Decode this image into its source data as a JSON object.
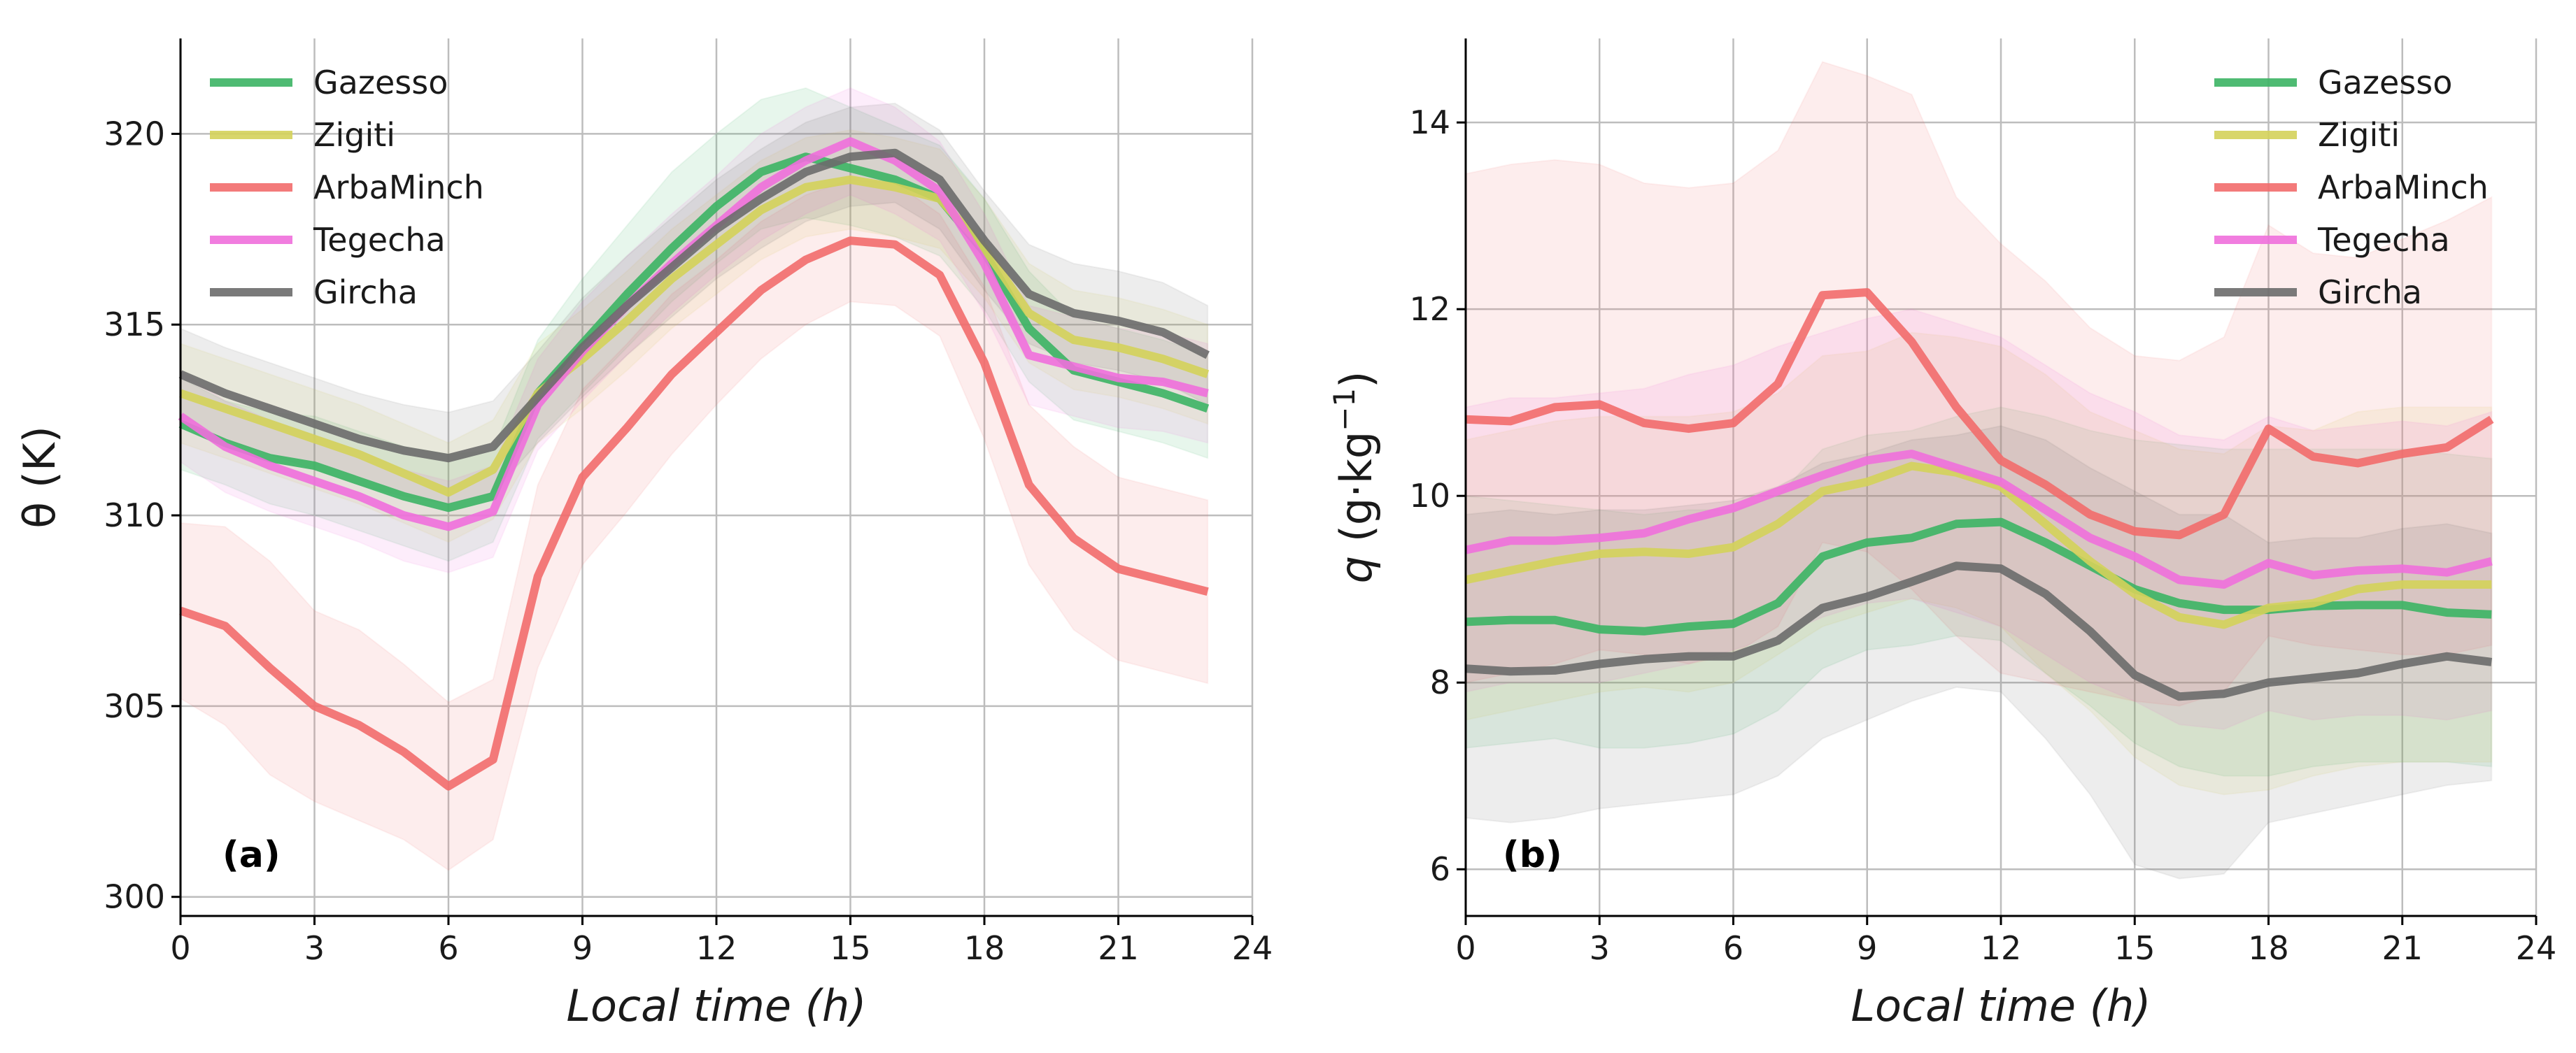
{
  "chart_data": [
    {
      "type": "line",
      "panel_label": "(a)",
      "xlabel": "Local time (h)",
      "ylabel": "θ (K)",
      "xlim": [
        0,
        24
      ],
      "ylim": [
        299.5,
        322.5
      ],
      "xticks": [
        0,
        3,
        6,
        9,
        12,
        15,
        18,
        21,
        24
      ],
      "yticks": [
        300,
        305,
        310,
        315,
        320
      ],
      "grid": "x and y",
      "legend_position": "top-left",
      "x": [
        0,
        1,
        2,
        3,
        4,
        5,
        6,
        7,
        8,
        9,
        10,
        11,
        12,
        13,
        14,
        15,
        16,
        17,
        18,
        19,
        20,
        21,
        22,
        23
      ],
      "series": [
        {
          "name": "Gazesso",
          "color": "#3cb464",
          "values": [
            312.4,
            311.9,
            311.5,
            311.3,
            310.9,
            310.5,
            310.2,
            310.5,
            313.2,
            314.5,
            315.8,
            317.0,
            318.1,
            319.0,
            319.4,
            319.1,
            318.8,
            318.3,
            316.9,
            314.9,
            313.8,
            313.5,
            313.2,
            312.8
          ],
          "lower": [
            311.2,
            310.8,
            310.3,
            310.0,
            309.6,
            309.2,
            308.8,
            309.3,
            312.0,
            313.2,
            314.4,
            315.6,
            316.6,
            317.5,
            317.8,
            317.6,
            317.3,
            316.8,
            315.4,
            313.5,
            312.5,
            312.2,
            311.9,
            311.5
          ],
          "upper": [
            313.6,
            313.0,
            312.7,
            312.6,
            312.2,
            311.8,
            311.6,
            311.7,
            314.6,
            316.2,
            317.6,
            319.0,
            320.0,
            320.9,
            321.2,
            320.7,
            320.2,
            319.7,
            318.3,
            316.4,
            315.2,
            314.9,
            314.6,
            314.2
          ]
        },
        {
          "name": "Zigiti",
          "color": "#d4d25a",
          "values": [
            313.2,
            312.8,
            312.4,
            312.0,
            311.6,
            311.1,
            310.6,
            311.2,
            313.2,
            314.1,
            315.1,
            316.2,
            317.1,
            318.0,
            318.6,
            318.8,
            318.6,
            318.3,
            317.0,
            315.3,
            314.6,
            314.4,
            314.1,
            313.7
          ],
          "lower": [
            311.9,
            311.5,
            311.1,
            310.7,
            310.3,
            309.8,
            309.3,
            309.9,
            311.9,
            312.8,
            313.8,
            314.9,
            315.8,
            316.7,
            317.3,
            317.5,
            317.3,
            317.0,
            315.7,
            314.0,
            313.3,
            313.1,
            312.8,
            312.4
          ],
          "upper": [
            314.5,
            314.1,
            313.7,
            313.3,
            312.9,
            312.4,
            311.9,
            312.5,
            314.5,
            315.4,
            316.4,
            317.5,
            318.4,
            319.3,
            319.9,
            320.1,
            319.9,
            319.6,
            318.3,
            316.6,
            315.9,
            315.7,
            315.4,
            315.0
          ]
        },
        {
          "name": "ArbaMinch",
          "color": "#f26c6c",
          "values": [
            307.5,
            307.1,
            306.0,
            305.0,
            304.5,
            303.8,
            302.9,
            303.6,
            308.4,
            311.0,
            312.3,
            313.7,
            314.8,
            315.9,
            316.7,
            317.2,
            317.1,
            316.3,
            314.0,
            310.8,
            309.4,
            308.6,
            308.3,
            308.0
          ],
          "lower": [
            305.2,
            304.5,
            303.2,
            302.5,
            302.0,
            301.5,
            300.7,
            301.5,
            306.0,
            308.7,
            310.1,
            311.6,
            312.9,
            314.1,
            315.0,
            315.6,
            315.5,
            314.7,
            312.0,
            308.7,
            307.0,
            306.2,
            305.9,
            305.6
          ],
          "upper": [
            309.8,
            309.7,
            308.8,
            307.5,
            307.0,
            306.1,
            305.1,
            305.7,
            310.8,
            313.3,
            314.5,
            315.8,
            316.7,
            317.7,
            318.4,
            318.8,
            318.7,
            317.9,
            316.0,
            312.9,
            311.8,
            311.0,
            310.7,
            310.4
          ]
        },
        {
          "name": "Tegecha",
          "color": "#f06fdc",
          "values": [
            312.6,
            311.8,
            311.3,
            310.9,
            310.5,
            310.0,
            309.7,
            310.1,
            312.9,
            314.3,
            315.5,
            316.6,
            317.6,
            318.6,
            319.3,
            319.8,
            319.3,
            318.5,
            316.6,
            314.2,
            313.9,
            313.6,
            313.5,
            313.2
          ],
          "lower": [
            311.4,
            310.6,
            310.1,
            309.7,
            309.3,
            308.8,
            308.5,
            308.9,
            311.7,
            313.0,
            314.2,
            315.3,
            316.3,
            317.2,
            317.9,
            318.4,
            317.9,
            317.2,
            315.3,
            312.9,
            312.6,
            312.3,
            312.2,
            311.9
          ],
          "upper": [
            313.8,
            313.0,
            312.5,
            312.1,
            311.7,
            311.2,
            310.9,
            311.3,
            314.1,
            315.6,
            316.8,
            317.9,
            318.9,
            320.0,
            320.7,
            321.2,
            320.7,
            319.8,
            317.9,
            315.5,
            315.2,
            314.9,
            314.8,
            314.5
          ]
        },
        {
          "name": "Gircha",
          "color": "#6b6b6b",
          "values": [
            313.7,
            313.2,
            312.8,
            312.4,
            312.0,
            311.7,
            311.5,
            311.8,
            313.1,
            314.4,
            315.5,
            316.5,
            317.5,
            318.3,
            319.0,
            319.4,
            319.5,
            318.8,
            317.2,
            315.8,
            315.3,
            315.1,
            314.8,
            314.2
          ],
          "lower": [
            312.5,
            312.0,
            311.6,
            311.2,
            310.8,
            310.5,
            310.3,
            310.6,
            311.9,
            313.1,
            314.2,
            315.2,
            316.2,
            317.0,
            317.7,
            318.1,
            318.2,
            317.5,
            315.9,
            314.5,
            314.0,
            313.8,
            313.5,
            312.9
          ],
          "upper": [
            314.9,
            314.4,
            314.0,
            313.6,
            313.2,
            312.9,
            312.7,
            313.0,
            314.3,
            315.7,
            316.8,
            317.8,
            318.8,
            319.6,
            320.3,
            320.7,
            320.8,
            320.1,
            318.5,
            317.1,
            316.6,
            316.4,
            316.1,
            315.5
          ]
        }
      ]
    },
    {
      "type": "line",
      "panel_label": "(b)",
      "xlabel": "Local time (h)",
      "ylabel_var": "q",
      "ylabel_unit": "(g·kg",
      "ylabel_exp": "−1",
      "ylabel_close": ")",
      "xlim": [
        0,
        24
      ],
      "ylim": [
        5.5,
        14.9
      ],
      "xticks": [
        0,
        3,
        6,
        9,
        12,
        15,
        18,
        21,
        24
      ],
      "yticks": [
        6,
        8,
        10,
        12,
        14
      ],
      "grid": "x and y",
      "legend_position": "top-right",
      "x": [
        0,
        1,
        2,
        3,
        4,
        5,
        6,
        7,
        8,
        9,
        10,
        11,
        12,
        13,
        14,
        15,
        16,
        17,
        18,
        19,
        20,
        21,
        22,
        23
      ],
      "series": [
        {
          "name": "Gazesso",
          "color": "#3cb464",
          "values": [
            8.65,
            8.67,
            8.67,
            8.57,
            8.55,
            8.6,
            8.63,
            8.85,
            9.35,
            9.5,
            9.55,
            9.7,
            9.72,
            9.5,
            9.25,
            9.0,
            8.85,
            8.78,
            8.78,
            8.82,
            8.83,
            8.83,
            8.75,
            8.73
          ],
          "lower": [
            7.3,
            7.35,
            7.4,
            7.3,
            7.3,
            7.35,
            7.45,
            7.7,
            8.15,
            8.35,
            8.4,
            8.5,
            8.45,
            8.1,
            7.75,
            7.35,
            7.1,
            7.0,
            7.0,
            7.1,
            7.15,
            7.15,
            7.15,
            7.1
          ],
          "upper": [
            10.0,
            9.95,
            9.9,
            9.85,
            9.8,
            9.85,
            9.85,
            10.0,
            10.5,
            10.65,
            10.7,
            10.85,
            10.95,
            10.85,
            10.7,
            10.6,
            10.55,
            10.5,
            10.5,
            10.5,
            10.5,
            10.5,
            10.45,
            10.4
          ]
        },
        {
          "name": "Zigiti",
          "color": "#d4d25a",
          "values": [
            9.1,
            9.2,
            9.3,
            9.38,
            9.4,
            9.38,
            9.45,
            9.7,
            10.05,
            10.15,
            10.32,
            10.25,
            10.1,
            9.7,
            9.3,
            8.95,
            8.7,
            8.62,
            8.8,
            8.85,
            9.0,
            9.05,
            9.05,
            9.05
          ],
          "lower": [
            7.6,
            7.7,
            7.8,
            7.9,
            7.95,
            7.9,
            8.0,
            8.3,
            8.6,
            8.75,
            8.9,
            8.8,
            8.6,
            8.1,
            7.7,
            7.2,
            6.9,
            6.8,
            6.85,
            7.0,
            7.1,
            7.15,
            7.15,
            7.15
          ],
          "upper": [
            10.6,
            10.7,
            10.8,
            10.85,
            10.85,
            10.85,
            10.9,
            11.1,
            11.5,
            11.55,
            11.75,
            11.7,
            11.6,
            11.3,
            10.9,
            10.7,
            10.5,
            10.45,
            10.75,
            10.7,
            10.9,
            10.95,
            10.95,
            10.95
          ]
        },
        {
          "name": "ArbaMinch",
          "color": "#f26c6c",
          "values": [
            10.82,
            10.8,
            10.95,
            10.98,
            10.78,
            10.72,
            10.78,
            11.2,
            12.15,
            12.18,
            11.65,
            10.95,
            10.38,
            10.12,
            9.8,
            9.62,
            9.58,
            9.8,
            10.72,
            10.42,
            10.35,
            10.45,
            10.52,
            10.82
          ],
          "lower": [
            8.0,
            8.1,
            8.2,
            8.35,
            8.3,
            8.2,
            8.3,
            8.6,
            9.5,
            9.4,
            9.0,
            8.5,
            8.1,
            8.0,
            7.9,
            7.8,
            7.75,
            7.9,
            8.5,
            8.4,
            8.35,
            8.3,
            8.3,
            8.4
          ],
          "upper": [
            13.45,
            13.55,
            13.6,
            13.55,
            13.35,
            13.3,
            13.35,
            13.7,
            14.65,
            14.5,
            14.3,
            13.2,
            12.7,
            12.3,
            11.8,
            11.5,
            11.45,
            11.7,
            12.9,
            12.6,
            12.55,
            12.75,
            12.95,
            13.2
          ]
        },
        {
          "name": "Tegecha",
          "color": "#f06fdc",
          "values": [
            9.42,
            9.52,
            9.52,
            9.55,
            9.6,
            9.75,
            9.87,
            10.05,
            10.22,
            10.38,
            10.45,
            10.3,
            10.15,
            9.85,
            9.55,
            9.35,
            9.1,
            9.05,
            9.28,
            9.15,
            9.2,
            9.22,
            9.18,
            9.3
          ],
          "lower": [
            7.9,
            8.0,
            8.0,
            8.0,
            8.1,
            8.2,
            8.35,
            8.5,
            8.7,
            8.85,
            8.9,
            8.75,
            8.6,
            8.3,
            8.0,
            7.8,
            7.55,
            7.5,
            7.7,
            7.6,
            7.65,
            7.65,
            7.6,
            7.7
          ],
          "upper": [
            10.95,
            11.05,
            11.05,
            11.1,
            11.15,
            11.3,
            11.4,
            11.6,
            11.75,
            11.9,
            12.0,
            11.85,
            11.7,
            11.4,
            11.1,
            10.9,
            10.65,
            10.6,
            10.85,
            10.7,
            10.75,
            10.8,
            10.75,
            10.9
          ]
        },
        {
          "name": "Gircha",
          "color": "#6b6b6b",
          "values": [
            8.15,
            8.12,
            8.13,
            8.2,
            8.25,
            8.28,
            8.28,
            8.45,
            8.8,
            8.92,
            9.08,
            9.25,
            9.22,
            8.95,
            8.55,
            8.08,
            7.85,
            7.88,
            8.0,
            8.05,
            8.1,
            8.2,
            8.28,
            8.22
          ],
          "lower": [
            6.55,
            6.5,
            6.55,
            6.65,
            6.7,
            6.75,
            6.8,
            7.0,
            7.4,
            7.6,
            7.8,
            7.95,
            7.9,
            7.4,
            6.8,
            6.05,
            5.9,
            5.95,
            6.5,
            6.6,
            6.7,
            6.8,
            6.9,
            6.95
          ],
          "upper": [
            9.8,
            9.85,
            9.8,
            9.85,
            9.85,
            9.9,
            9.95,
            10.1,
            10.35,
            10.45,
            10.6,
            10.65,
            10.75,
            10.6,
            10.3,
            10.05,
            9.8,
            9.8,
            9.5,
            9.55,
            9.55,
            9.65,
            9.7,
            9.6
          ]
        }
      ]
    }
  ]
}
